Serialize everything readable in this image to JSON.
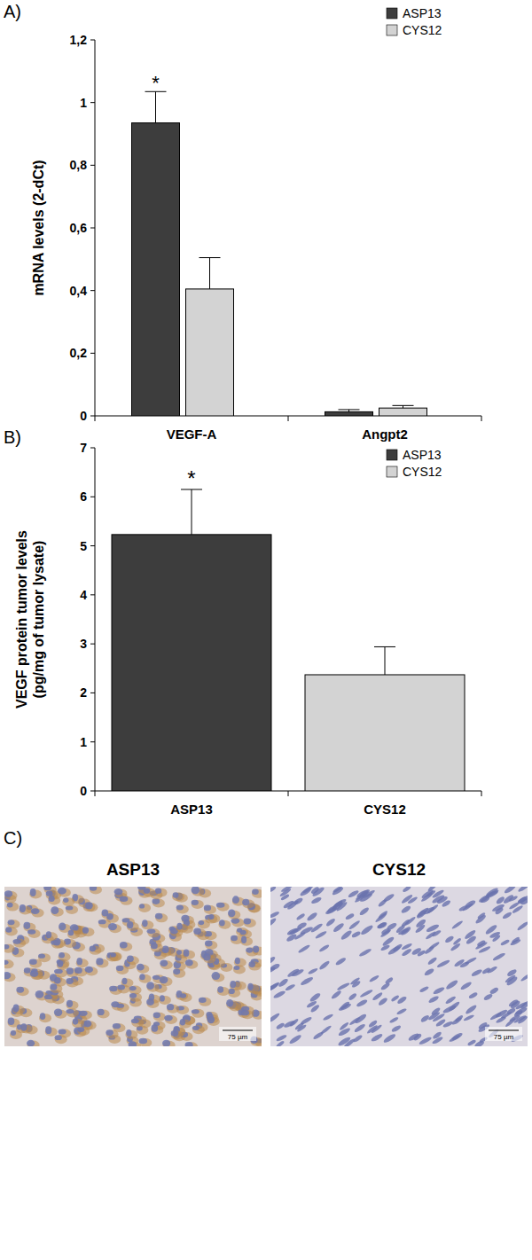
{
  "chart_data": [
    {
      "type": "bar",
      "panel_label": "A)",
      "y_label": "mRNA levels (2-dCt)",
      "categories": [
        "VEGF-A",
        "Angpt2"
      ],
      "series": [
        {
          "name": "ASP13",
          "color": "#3d3d3d",
          "values": [
            0.935,
            0.013
          ],
          "errors": [
            0.1,
            0.007
          ]
        },
        {
          "name": "CYS12",
          "color": "#d3d3d3",
          "values": [
            0.405,
            0.025
          ],
          "errors": [
            0.1,
            0.008
          ]
        }
      ],
      "ylim": [
        0,
        1.2
      ],
      "yticks": [
        0,
        {
          "value": 0.2,
          "label": "0,2"
        },
        {
          "value": 0.4,
          "label": "0,4"
        },
        {
          "value": 0.6,
          "label": "0,6"
        },
        {
          "value": 0.8,
          "label": "0,8"
        },
        1,
        {
          "value": 1.2,
          "label": "1,2"
        }
      ],
      "legend": "upper right",
      "grid": false,
      "annotations": [
        {
          "text": "*",
          "series": "ASP13",
          "category": "VEGF-A"
        }
      ]
    },
    {
      "type": "bar",
      "panel_label": "B)",
      "y_label": [
        "VEGF protein tumor levels",
        "(pg/mg of tumor lysate)"
      ],
      "categories": [
        "ASP13",
        "CYS12"
      ],
      "values": [
        5.23,
        2.37
      ],
      "errors": [
        0.92,
        0.57
      ],
      "colors": [
        "#3d3d3d",
        "#d3d3d3"
      ],
      "ylim": [
        0,
        7
      ],
      "yticks": [
        0,
        1,
        2,
        3,
        4,
        5,
        6,
        7
      ],
      "legend": "upper right",
      "grid": false,
      "annotations": [
        {
          "text": "*",
          "category": "ASP13"
        }
      ]
    }
  ],
  "images": {
    "panel_label": "C)",
    "panels": [
      {
        "title": "ASP13",
        "scale_bar": "75 µm"
      },
      {
        "title": "CYS12",
        "scale_bar": "75 µm"
      }
    ]
  }
}
